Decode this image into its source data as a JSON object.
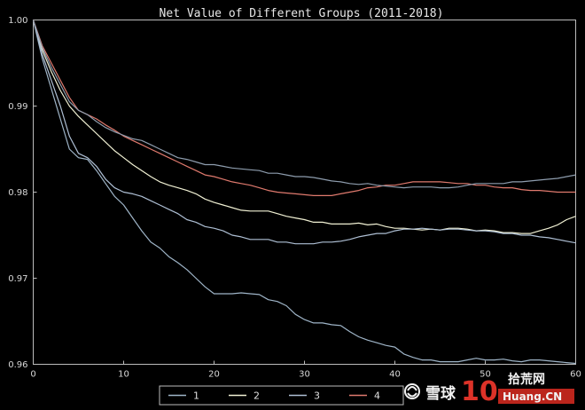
{
  "chart_data": {
    "type": "line",
    "title": "Net Value of Different Groups (2011-2018)",
    "xlabel": "",
    "ylabel": "",
    "xlim": [
      0,
      60
    ],
    "ylim": [
      0.96,
      1.0
    ],
    "xticks": [
      0,
      10,
      20,
      30,
      40,
      50,
      60
    ],
    "xtick_labels": [
      "0",
      "10",
      "20",
      "30",
      "40",
      "50",
      "60"
    ],
    "yticks": [
      0.96,
      0.97,
      0.98,
      0.99,
      1.0
    ],
    "ytick_labels": [
      "0.96",
      "0.97",
      "0.98",
      "0.99",
      "1.00"
    ],
    "grid": false,
    "legend_position": "bottom-center",
    "x": [
      0,
      1,
      2,
      3,
      4,
      5,
      6,
      7,
      8,
      9,
      10,
      11,
      12,
      13,
      14,
      15,
      16,
      17,
      18,
      19,
      20,
      21,
      22,
      23,
      24,
      25,
      26,
      27,
      28,
      29,
      30,
      31,
      32,
      33,
      34,
      35,
      36,
      37,
      38,
      39,
      40,
      41,
      42,
      43,
      44,
      45,
      46,
      47,
      48,
      49,
      50,
      51,
      52,
      53,
      54,
      55,
      56,
      57,
      58,
      59,
      60
    ],
    "series": [
      {
        "name": "1",
        "color": "#9fb5c8",
        "values": [
          1.0,
          0.9955,
          0.992,
          0.9885,
          0.985,
          0.984,
          0.9838,
          0.9825,
          0.981,
          0.9795,
          0.9785,
          0.977,
          0.9755,
          0.9742,
          0.9735,
          0.9725,
          0.9718,
          0.971,
          0.97,
          0.969,
          0.9682,
          0.9682,
          0.9682,
          0.9683,
          0.9682,
          0.9681,
          0.9675,
          0.9673,
          0.9668,
          0.9658,
          0.9652,
          0.9648,
          0.9648,
          0.9646,
          0.9645,
          0.9638,
          0.9632,
          0.9628,
          0.9625,
          0.9622,
          0.962,
          0.9612,
          0.9608,
          0.9605,
          0.9605,
          0.9603,
          0.9603,
          0.9603,
          0.9605,
          0.9607,
          0.9605,
          0.9605,
          0.9606,
          0.9604,
          0.9603,
          0.9605,
          0.9605,
          0.9604,
          0.9603,
          0.9602,
          0.9601
        ]
      },
      {
        "name": "2",
        "color": "#f1f1d4",
        "values": [
          1.0,
          0.9965,
          0.994,
          0.9918,
          0.99,
          0.9888,
          0.9878,
          0.9868,
          0.9858,
          0.9848,
          0.984,
          0.9832,
          0.9825,
          0.9818,
          0.9812,
          0.9808,
          0.9805,
          0.9802,
          0.9798,
          0.9792,
          0.9788,
          0.9785,
          0.9782,
          0.9779,
          0.9778,
          0.9778,
          0.9778,
          0.9775,
          0.9772,
          0.977,
          0.9768,
          0.9765,
          0.9765,
          0.9763,
          0.9763,
          0.9763,
          0.9764,
          0.9762,
          0.9763,
          0.976,
          0.9758,
          0.9758,
          0.9757,
          0.9756,
          0.9757,
          0.9756,
          0.9758,
          0.9758,
          0.9757,
          0.9755,
          0.9756,
          0.9755,
          0.9753,
          0.9753,
          0.9752,
          0.9752,
          0.9755,
          0.9758,
          0.9762,
          0.9768,
          0.9772
        ]
      },
      {
        "name": "3",
        "color": "#aebfd4",
        "values": [
          1.0,
          0.996,
          0.993,
          0.99,
          0.9865,
          0.9845,
          0.984,
          0.983,
          0.9815,
          0.9805,
          0.98,
          0.9798,
          0.9795,
          0.979,
          0.9785,
          0.978,
          0.9775,
          0.9768,
          0.9765,
          0.976,
          0.9758,
          0.9755,
          0.975,
          0.9748,
          0.9745,
          0.9745,
          0.9745,
          0.9742,
          0.9742,
          0.974,
          0.974,
          0.974,
          0.9742,
          0.9742,
          0.9743,
          0.9745,
          0.9748,
          0.975,
          0.9752,
          0.9752,
          0.9755,
          0.9757,
          0.9757,
          0.9758,
          0.9757,
          0.9756,
          0.9757,
          0.9757,
          0.9756,
          0.9755,
          0.9755,
          0.9754,
          0.9752,
          0.9752,
          0.975,
          0.975,
          0.9748,
          0.9747,
          0.9745,
          0.9743,
          0.9741
        ]
      },
      {
        "name": "4",
        "color": "#e07a6e",
        "values": [
          1.0,
          0.997,
          0.995,
          0.993,
          0.991,
          0.9895,
          0.989,
          0.9885,
          0.9878,
          0.9872,
          0.9865,
          0.986,
          0.9855,
          0.985,
          0.9845,
          0.984,
          0.9835,
          0.983,
          0.9825,
          0.982,
          0.9818,
          0.9815,
          0.9812,
          0.981,
          0.9808,
          0.9805,
          0.9802,
          0.98,
          0.9799,
          0.9798,
          0.9797,
          0.9796,
          0.9796,
          0.9796,
          0.9798,
          0.98,
          0.9802,
          0.9805,
          0.9806,
          0.9808,
          0.9808,
          0.981,
          0.9812,
          0.9812,
          0.9812,
          0.9812,
          0.9811,
          0.981,
          0.981,
          0.9808,
          0.9808,
          0.9806,
          0.9805,
          0.9805,
          0.9803,
          0.9802,
          0.9802,
          0.9801,
          0.98,
          0.98,
          0.98
        ]
      },
      {
        "name": "",
        "color": "#8e9dae",
        "values": [
          1.0,
          0.9968,
          0.9945,
          0.9925,
          0.9905,
          0.9895,
          0.989,
          0.9882,
          0.9875,
          0.987,
          0.9866,
          0.9862,
          0.986,
          0.9855,
          0.985,
          0.9845,
          0.984,
          0.9838,
          0.9835,
          0.9832,
          0.9832,
          0.983,
          0.9828,
          0.9827,
          0.9826,
          0.9825,
          0.9822,
          0.9822,
          0.982,
          0.9818,
          0.9818,
          0.9817,
          0.9815,
          0.9813,
          0.9812,
          0.981,
          0.9809,
          0.981,
          0.9808,
          0.9807,
          0.9806,
          0.9805,
          0.9806,
          0.9806,
          0.9806,
          0.9805,
          0.9805,
          0.9806,
          0.9808,
          0.981,
          0.981,
          0.981,
          0.981,
          0.9812,
          0.9812,
          0.9813,
          0.9814,
          0.9815,
          0.9816,
          0.9818,
          0.982
        ]
      }
    ]
  },
  "watermark": {
    "left_text": "雪球",
    "mid_text": "10",
    "right_text": "Huang.CN",
    "right_top_text": "拾荒网",
    "icon_name": "snowball-logo-icon"
  }
}
